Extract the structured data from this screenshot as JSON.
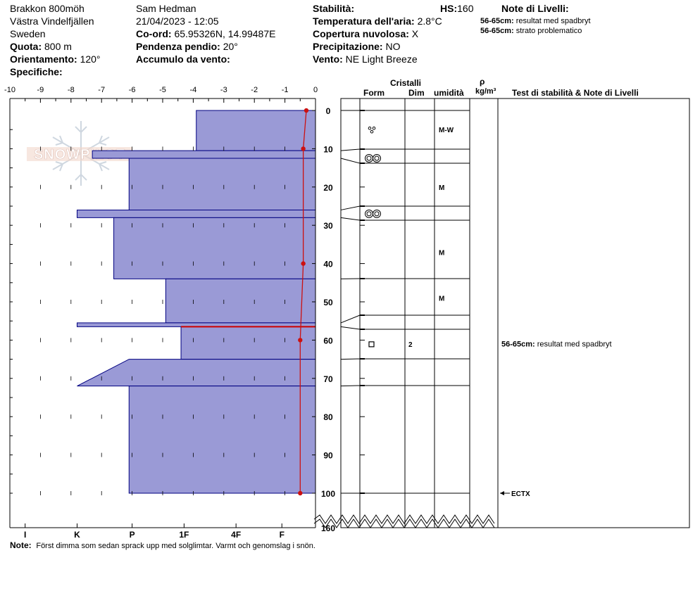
{
  "header": {
    "location": "Brakkon 800möh",
    "region": "Västra Vindelfjällen",
    "country": "Sweden",
    "elevation_label": "Quota:",
    "elevation_value": "800 m",
    "aspect_label": "Orientamento:",
    "aspect_value": "120°",
    "specifics_label": "Specifiche:",
    "observer": "Sam Hedman",
    "datetime": "21/04/2023 - 12:05",
    "coord_label": "Co-ord:",
    "coord_value": "65.95326N, 14.99487E",
    "slope_label": "Pendenza pendio:",
    "slope_value": "20°",
    "wind_loading_label": "Accumulo da vento:",
    "stability_label": "Stabilità:",
    "hs_label": "HS:",
    "hs_value": "160",
    "air_temp_label": "Temperatura dell'aria:",
    "air_temp_value": "2.8°C",
    "cloud_label": "Copertura nuvolosa:",
    "cloud_value": "X",
    "precip_label": "Precipitazione:",
    "precip_value": "NO",
    "wind_label": "Vento:",
    "wind_value": "NE Light Breeze",
    "layer_notes_title": "Note di Livelli:",
    "layer_notes": [
      {
        "range": "56-65cm:",
        "text": "resultat med spadbryt"
      },
      {
        "range": "56-65cm:",
        "text": "strato problematico"
      }
    ]
  },
  "logo_text": "SNOWPILOT",
  "columns": {
    "crystals": "Cristalli",
    "form": "Form",
    "dim": "Dim",
    "moisture": "umidità",
    "rho": "ρ",
    "density_unit": "kg/m³",
    "tests_notes": "Test di stabilità & Note di Livelli"
  },
  "note_label": "Note:",
  "note_text": "Först dimma som sedan sprack upp med solglimtar. Varmt och genomslag i snön.",
  "colors": {
    "profile_fill": "#9a9ad6",
    "profile_stroke": "#000080",
    "temp": "#cc1111",
    "problem": "#cc0000"
  },
  "chart_data": {
    "type": "snow_profile",
    "temperature_axis": {
      "ticks": [
        -10,
        -9,
        -8,
        -7,
        -6,
        -5,
        -4,
        -3,
        -2,
        -1,
        0
      ],
      "labels": [
        "-10",
        "-9",
        "-8",
        "-7",
        "-6",
        "-5",
        "-4",
        "-3",
        "-2",
        "-1",
        "0"
      ]
    },
    "hardness_axis": {
      "labels": [
        "I",
        "K",
        "P",
        "1F",
        "4F",
        "F"
      ],
      "positions": [
        9.5,
        7.8,
        6.0,
        4.3,
        2.6,
        1.1
      ]
    },
    "depth_axis": {
      "ticks": [
        0,
        10,
        20,
        30,
        40,
        50,
        60,
        70,
        80,
        90,
        100,
        160
      ],
      "labels": [
        "0",
        "10",
        "20",
        "30",
        "40",
        "50",
        "60",
        "70",
        "80",
        "90",
        "100",
        "160"
      ],
      "unit": "cm"
    },
    "layers": [
      {
        "top": 0,
        "bottom": 10.5,
        "hardness": 3.9
      },
      {
        "top": 10.5,
        "bottom": 12.5,
        "hardness": 7.3
      },
      {
        "top": 12.5,
        "bottom": 26,
        "hardness": 6.1
      },
      {
        "top": 26,
        "bottom": 28,
        "hardness": 7.8
      },
      {
        "top": 28,
        "bottom": 44,
        "hardness": 6.6
      },
      {
        "top": 44,
        "bottom": 55.5,
        "hardness": 4.9
      },
      {
        "top": 55.5,
        "bottom": 56.5,
        "hardness": 7.8
      },
      {
        "top": 56.5,
        "bottom": 65,
        "hardness": 4.4
      },
      {
        "top": 65,
        "bottom": 72,
        "hardness_top": 6.1,
        "hardness_bottom": 7.8
      },
      {
        "top": 72,
        "bottom": 100,
        "hardness": 6.1
      }
    ],
    "temperature_profile": [
      {
        "depth": 0,
        "temp": -0.3
      },
      {
        "depth": 10,
        "temp": -0.4
      },
      {
        "depth": 40,
        "temp": -0.4
      },
      {
        "depth": 60,
        "temp": -0.5
      },
      {
        "depth": 100,
        "temp": -0.5
      }
    ],
    "problem_layer_depth": 56.5,
    "layer_boundaries": [
      0,
      10.5,
      12.5,
      26,
      28,
      44,
      55.5,
      56.5,
      65,
      72,
      100
    ],
    "crystal_rows": [
      {
        "depth": 5,
        "form": "precip",
        "dim": "",
        "moisture": "M-W"
      },
      {
        "depth": 12.5,
        "form": "melt",
        "dim": "",
        "moisture": ""
      },
      {
        "depth": 20,
        "form": "",
        "dim": "",
        "moisture": "M"
      },
      {
        "depth": 27,
        "form": "melt",
        "dim": "",
        "moisture": ""
      },
      {
        "depth": 37,
        "form": "",
        "dim": "",
        "moisture": "M"
      },
      {
        "depth": 49,
        "form": "",
        "dim": "",
        "moisture": "M"
      },
      {
        "depth": 61,
        "form": "faceted",
        "dim": "2",
        "moisture": ""
      }
    ],
    "test_notes": [
      {
        "depth": 62,
        "range": "56-65cm:",
        "text": "resultat med spadbryt"
      }
    ],
    "stability_tests": [
      {
        "depth": 100,
        "label": "ECTX"
      }
    ]
  }
}
